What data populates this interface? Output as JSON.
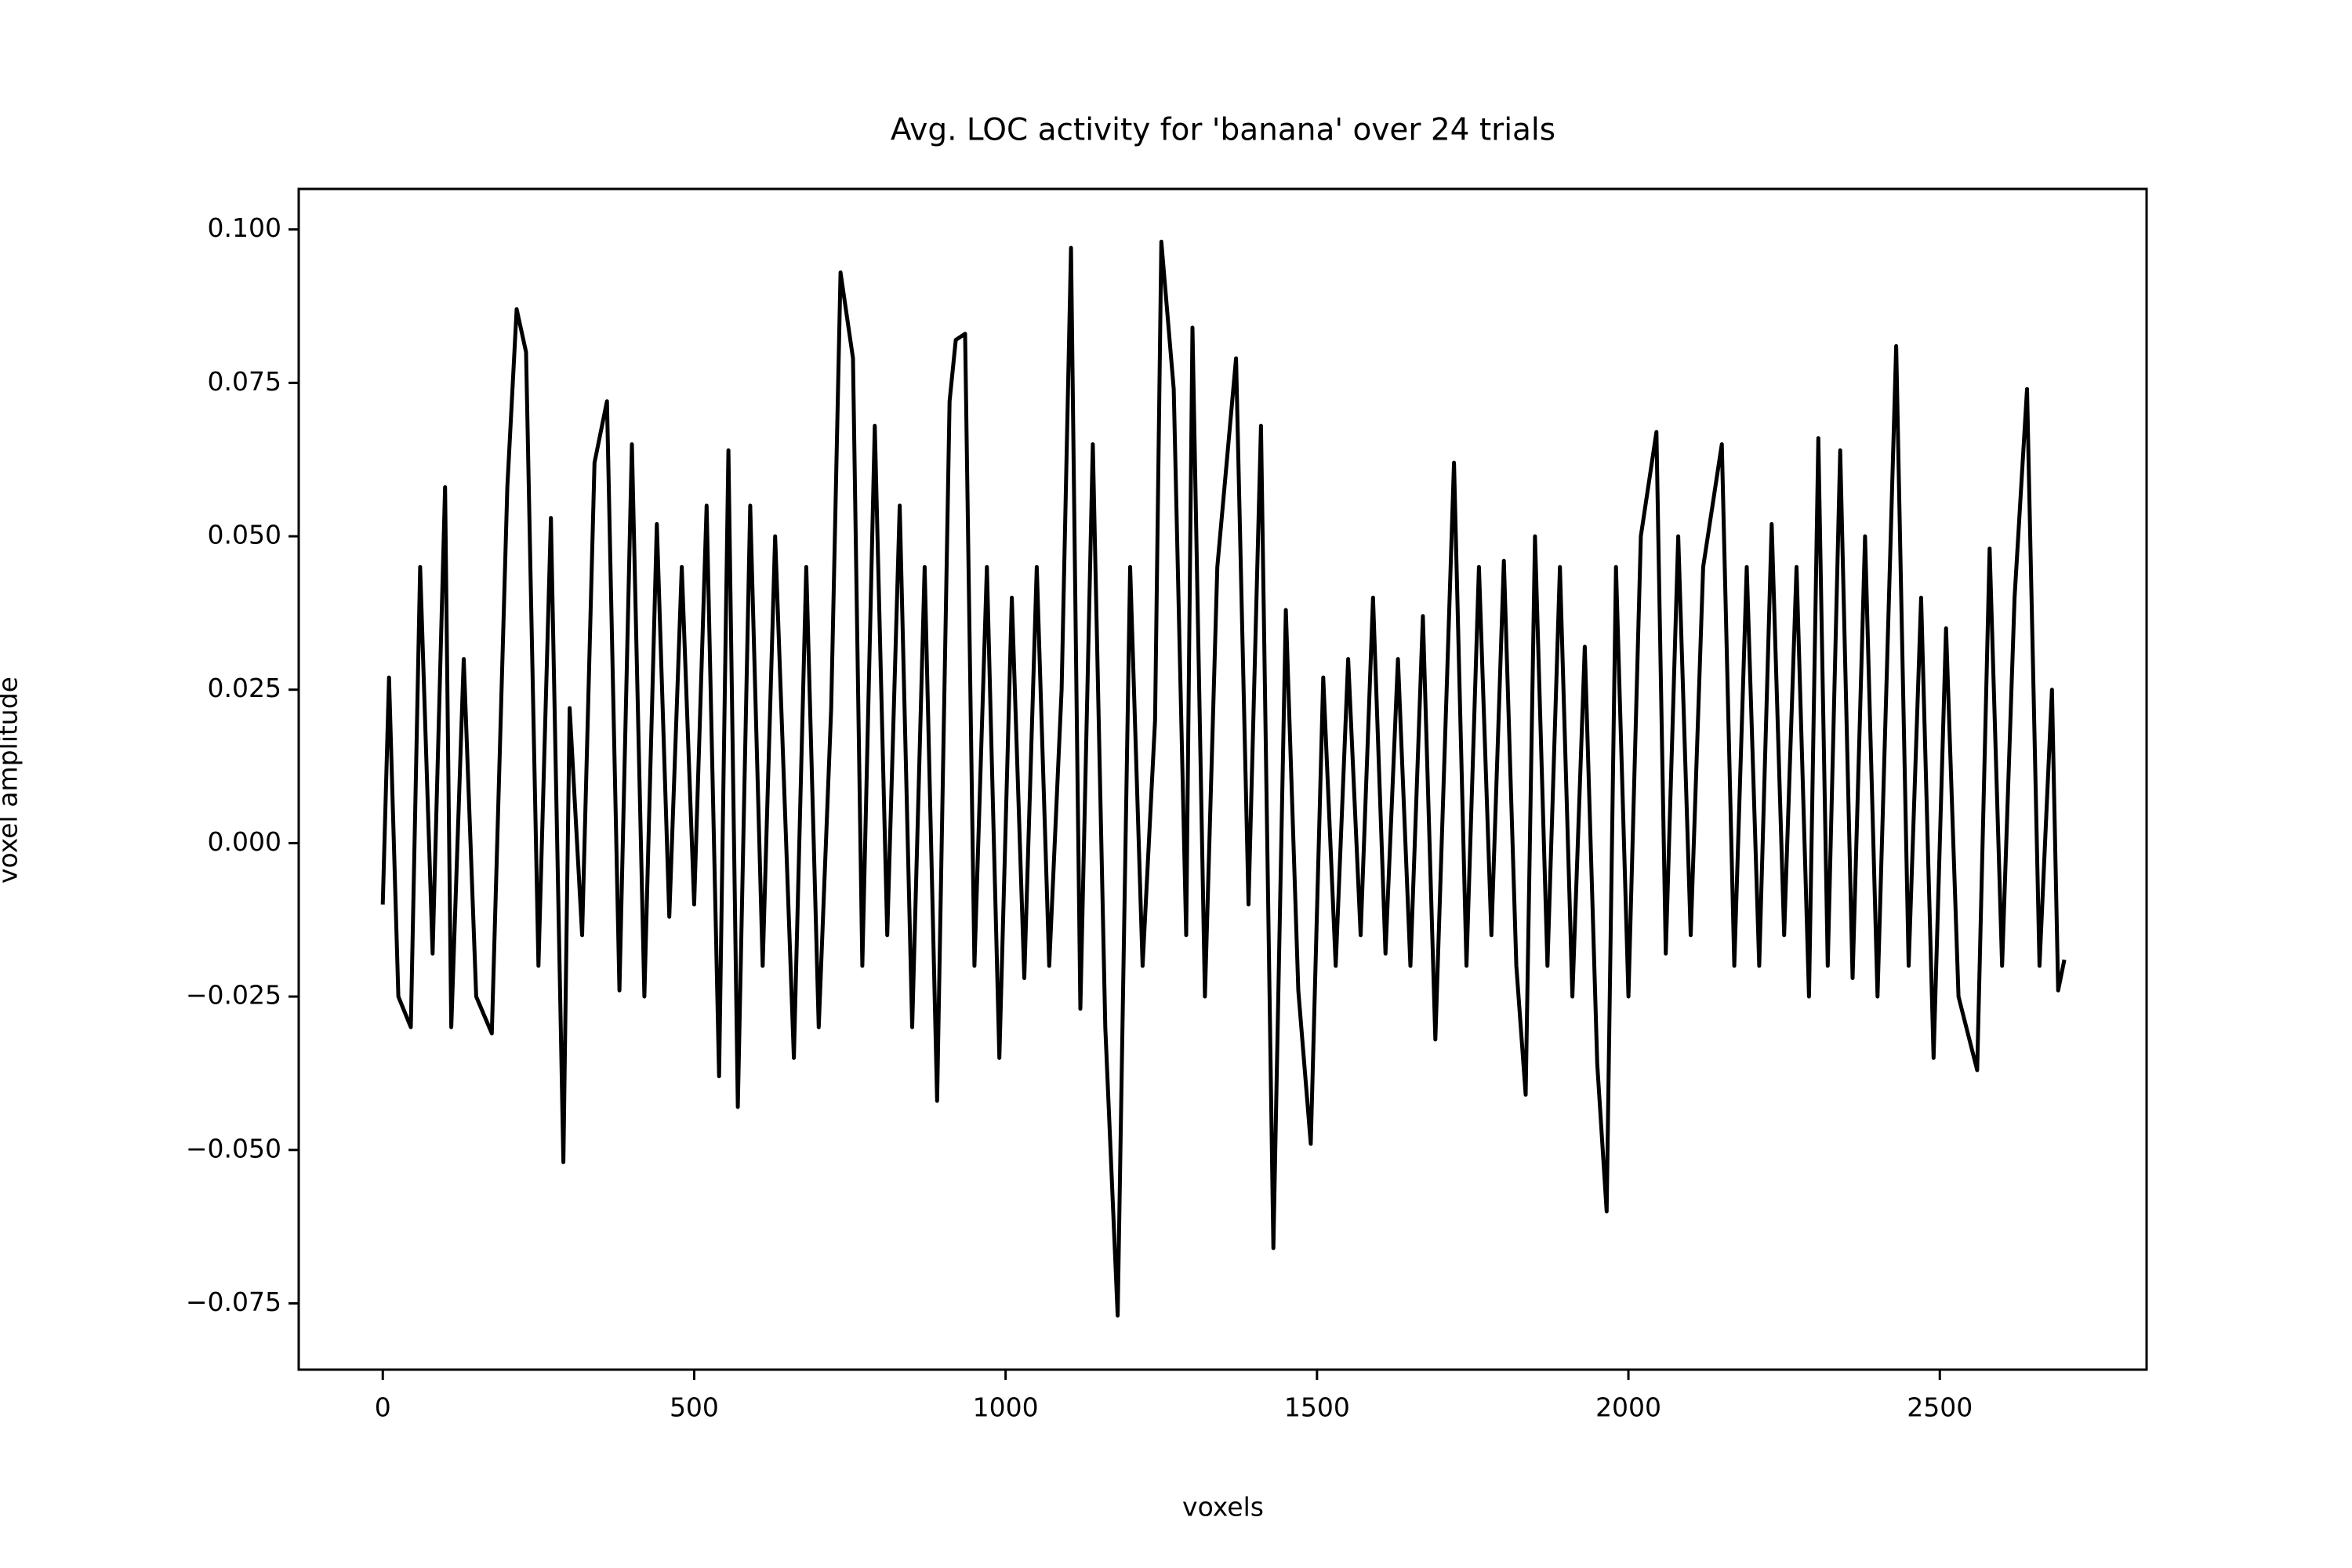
{
  "chart_data": {
    "type": "line",
    "title": "Avg. LOC activity for 'banana' over 24 trials",
    "xlabel": "voxels",
    "ylabel": "voxel amplitude",
    "series": [
      {
        "color": "#000000",
        "x": [
          0,
          10,
          25,
          45,
          60,
          80,
          100,
          110,
          130,
          150,
          175,
          200,
          215,
          230,
          250,
          270,
          290,
          300,
          320,
          340,
          360,
          380,
          400,
          420,
          440,
          460,
          480,
          500,
          520,
          540,
          555,
          570,
          590,
          610,
          630,
          660,
          680,
          700,
          720,
          735,
          755,
          770,
          790,
          810,
          830,
          850,
          870,
          890,
          910,
          920,
          935,
          950,
          970,
          990,
          1010,
          1030,
          1050,
          1070,
          1090,
          1105,
          1120,
          1140,
          1160,
          1180,
          1200,
          1220,
          1240,
          1250,
          1270,
          1290,
          1300,
          1320,
          1340,
          1370,
          1390,
          1410,
          1430,
          1450,
          1470,
          1490,
          1510,
          1530,
          1550,
          1570,
          1590,
          1610,
          1630,
          1650,
          1670,
          1690,
          1720,
          1740,
          1760,
          1780,
          1800,
          1820,
          1835,
          1850,
          1870,
          1890,
          1910,
          1930,
          1950,
          1965,
          1980,
          2000,
          2020,
          2045,
          2060,
          2080,
          2100,
          2120,
          2150,
          2170,
          2190,
          2210,
          2230,
          2250,
          2270,
          2290,
          2305,
          2320,
          2340,
          2360,
          2380,
          2400,
          2430,
          2450,
          2470,
          2490,
          2510,
          2530,
          2560,
          2580,
          2600,
          2620,
          2640,
          2660,
          2680,
          2690,
          2700
        ],
        "values": [
          -0.01,
          0.027,
          -0.025,
          -0.03,
          0.045,
          -0.018,
          0.058,
          -0.03,
          0.03,
          -0.025,
          -0.031,
          0.058,
          0.087,
          0.08,
          -0.02,
          0.053,
          -0.052,
          0.022,
          -0.015,
          0.062,
          0.072,
          -0.024,
          0.065,
          -0.025,
          0.052,
          -0.012,
          0.045,
          -0.01,
          0.055,
          -0.038,
          0.064,
          -0.043,
          0.055,
          -0.02,
          0.05,
          -0.035,
          0.045,
          -0.03,
          0.022,
          0.093,
          0.079,
          -0.02,
          0.068,
          -0.015,
          0.055,
          -0.03,
          0.045,
          -0.042,
          0.072,
          0.082,
          0.083,
          -0.02,
          0.045,
          -0.035,
          0.04,
          -0.022,
          0.045,
          -0.02,
          0.025,
          0.097,
          -0.027,
          0.065,
          -0.03,
          -0.077,
          0.045,
          -0.02,
          0.02,
          0.098,
          0.074,
          -0.015,
          0.084,
          -0.025,
          0.045,
          0.079,
          -0.01,
          0.068,
          -0.066,
          0.038,
          -0.024,
          -0.049,
          0.027,
          -0.02,
          0.03,
          -0.015,
          0.04,
          -0.018,
          0.03,
          -0.02,
          0.037,
          -0.032,
          0.062,
          -0.02,
          0.045,
          -0.015,
          0.046,
          -0.02,
          -0.041,
          0.05,
          -0.02,
          0.045,
          -0.025,
          0.032,
          -0.036,
          -0.06,
          0.045,
          -0.025,
          0.05,
          0.067,
          -0.018,
          0.05,
          -0.015,
          0.045,
          0.065,
          -0.02,
          0.045,
          -0.02,
          0.052,
          -0.015,
          0.045,
          -0.025,
          0.066,
          -0.02,
          0.064,
          -0.022,
          0.05,
          -0.025,
          0.081,
          -0.02,
          0.04,
          -0.035,
          0.035,
          -0.025,
          -0.037,
          0.048,
          -0.02,
          0.04,
          0.074,
          -0.02,
          0.025,
          -0.024,
          -0.019
        ]
      }
    ],
    "xlim": [
      -135,
      2832
    ],
    "xticks": [
      0,
      500,
      1000,
      1500,
      2000,
      2500
    ],
    "ylim": [
      -0.0858,
      0.1066
    ],
    "yticks": [
      {
        "value": -0.075,
        "label": "−0.075"
      },
      {
        "value": -0.05,
        "label": "−0.050"
      },
      {
        "value": -0.025,
        "label": "−0.025"
      },
      {
        "value": 0,
        "label": "0.000"
      },
      {
        "value": 0.025,
        "label": "0.025"
      },
      {
        "value": 0.05,
        "label": "0.050"
      },
      {
        "value": 0.075,
        "label": "0.075"
      },
      {
        "value": 0.1,
        "label": "0.100"
      }
    ],
    "grid": false
  }
}
